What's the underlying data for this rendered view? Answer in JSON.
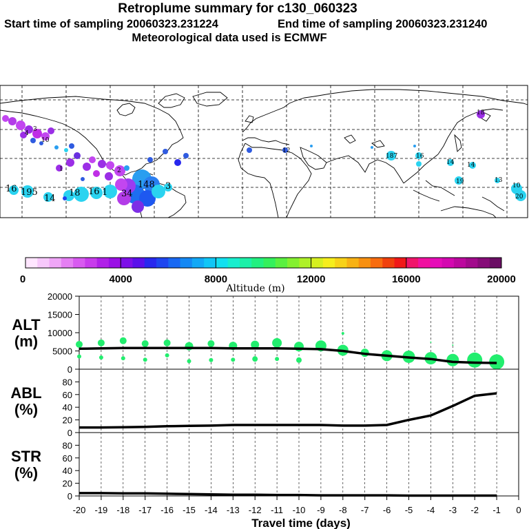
{
  "header": {
    "title": "Retroplume summary for c130_060323",
    "start": "Start time of sampling 20060323.231224",
    "end": "End time of sampling 20060323.231240",
    "met": "Meteorological data used is ECMWF"
  },
  "map_markers": [
    {
      "label": "16",
      "color": "#2ad3f0"
    },
    {
      "label": "195",
      "color": "#2ad3f0"
    },
    {
      "label": "14",
      "color": "#2ad3f0"
    },
    {
      "label": "18",
      "color": "#2ad3f0"
    },
    {
      "label": "16",
      "color": "#2ad3f0"
    },
    {
      "label": "1",
      "color": "#2ad3f0"
    },
    {
      "label": "148",
      "color": "#2ad3f0"
    },
    {
      "label": "3",
      "color": "#2ad3f0"
    },
    {
      "label": "34",
      "color": "#9b3cf0"
    },
    {
      "label": "10",
      "color": "#bf2ee6"
    },
    {
      "label": "4",
      "color": "#9b2ee6"
    },
    {
      "label": "3",
      "color": "#7d2ee6"
    },
    {
      "label": "2",
      "color": "#c246f0"
    },
    {
      "label": "1",
      "color": "#6a30e0"
    },
    {
      "label": "12",
      "color": "#2f5be0"
    },
    {
      "label": "187",
      "color": "#2ad3f0"
    },
    {
      "label": "16",
      "color": "#2ad3f0"
    },
    {
      "label": "14",
      "color": "#2ad3f0"
    },
    {
      "label": "14",
      "color": "#2ad3f0"
    },
    {
      "label": "19",
      "color": "#2ad3f0"
    },
    {
      "label": "13",
      "color": "#2ad3f0"
    },
    {
      "label": "10",
      "color": "#2ad3f0"
    },
    {
      "label": "20",
      "color": "#2ad3f0"
    },
    {
      "label": "18",
      "color": "#9b2ee6"
    }
  ],
  "colorbar": {
    "ticks": [
      "0",
      "4000",
      "8000",
      "12000",
      "16000",
      "20000"
    ],
    "label": "Altitude (m)",
    "colors": [
      "#ffe6ff",
      "#f7c8fb",
      "#efa6f7",
      "#e57ff3",
      "#d85af0",
      "#c83cec",
      "#b020e8",
      "#9a10e6",
      "#7d10e8",
      "#5a10ea",
      "#2828ee",
      "#1e46f0",
      "#1868f2",
      "#1488f4",
      "#12a8f6",
      "#10c6f6",
      "#12e0f0",
      "#18eece",
      "#1cf0a8",
      "#22f080",
      "#34f05c",
      "#5af040",
      "#84f030",
      "#aef028",
      "#d6f020",
      "#f6ee1c",
      "#f8d218",
      "#f8b214",
      "#f89010",
      "#f86c0e",
      "#f0400c",
      "#f01818",
      "#f0146a",
      "#f010a0",
      "#e60cb8",
      "#d408b0",
      "#bc089e",
      "#a20a8c",
      "#860c78",
      "#6a0e64"
    ]
  },
  "chart_data": [
    {
      "type": "line",
      "panel": "ALT",
      "label_line1": "ALT",
      "label_line2": "(m)",
      "ylim": [
        0,
        20000
      ],
      "yticks": [
        0,
        5000,
        10000,
        15000,
        20000
      ],
      "x": [
        -20,
        -19,
        -18,
        -17,
        -16,
        -15,
        -14,
        -13,
        -12,
        -11,
        -10,
        -9,
        -8,
        -7,
        -6,
        -5,
        -4,
        -3,
        -2,
        -1
      ],
      "values": [
        5600,
        5700,
        5800,
        5800,
        5800,
        5800,
        5800,
        5700,
        5700,
        5700,
        5600,
        5500,
        5000,
        4200,
        3700,
        3200,
        2800,
        2000,
        1800,
        1700
      ],
      "scatter": [
        {
          "x": -20,
          "y": 6800,
          "r": 5
        },
        {
          "x": -20,
          "y": 3500,
          "r": 3
        },
        {
          "x": -19,
          "y": 7200,
          "r": 5
        },
        {
          "x": -19,
          "y": 3200,
          "r": 3
        },
        {
          "x": -18,
          "y": 7800,
          "r": 5
        },
        {
          "x": -18,
          "y": 3000,
          "r": 3
        },
        {
          "x": -17,
          "y": 7000,
          "r": 5
        },
        {
          "x": -17,
          "y": 2600,
          "r": 3
        },
        {
          "x": -16,
          "y": 7200,
          "r": 5
        },
        {
          "x": -16,
          "y": 3800,
          "r": 3
        },
        {
          "x": -15,
          "y": 6300,
          "r": 6
        },
        {
          "x": -15,
          "y": 2200,
          "r": 3
        },
        {
          "x": -14,
          "y": 7000,
          "r": 5
        },
        {
          "x": -14,
          "y": 2500,
          "r": 3
        },
        {
          "x": -13,
          "y": 6400,
          "r": 6
        },
        {
          "x": -13,
          "y": 2600,
          "r": 3
        },
        {
          "x": -12,
          "y": 6700,
          "r": 6
        },
        {
          "x": -12,
          "y": 2800,
          "r": 4
        },
        {
          "x": -11,
          "y": 7200,
          "r": 7
        },
        {
          "x": -11,
          "y": 2800,
          "r": 3
        },
        {
          "x": -10,
          "y": 6200,
          "r": 7
        },
        {
          "x": -10,
          "y": 2500,
          "r": 4
        },
        {
          "x": -9,
          "y": 6400,
          "r": 8
        },
        {
          "x": -8,
          "y": 5200,
          "r": 8
        },
        {
          "x": -8,
          "y": 9800,
          "r": 2
        },
        {
          "x": -7,
          "y": 4500,
          "r": 6
        },
        {
          "x": -6,
          "y": 3700,
          "r": 8
        },
        {
          "x": -5,
          "y": 3400,
          "r": 9
        },
        {
          "x": -4,
          "y": 3000,
          "r": 9
        },
        {
          "x": -4,
          "y": 7400,
          "r": 1
        },
        {
          "x": -3,
          "y": 2500,
          "r": 9
        },
        {
          "x": -3,
          "y": 6600,
          "r": 1
        },
        {
          "x": -2,
          "y": 2500,
          "r": 11
        },
        {
          "x": -1,
          "y": 2000,
          "r": 11
        }
      ]
    },
    {
      "type": "line",
      "panel": "ABL",
      "label_line1": "ABL",
      "label_line2": "(%)",
      "ylim": [
        0,
        100
      ],
      "yticks": [
        0,
        20,
        40,
        60,
        80
      ],
      "x": [
        -20,
        -19,
        -18,
        -17,
        -16,
        -15,
        -14,
        -13,
        -12,
        -11,
        -10,
        -9,
        -8,
        -7,
        -6,
        -5,
        -4,
        -3,
        -2,
        -1
      ],
      "values": [
        8,
        8,
        8.5,
        9,
        10,
        10.5,
        11,
        12,
        12,
        12,
        12,
        12,
        11,
        11,
        12,
        20,
        27,
        42,
        58,
        62
      ]
    },
    {
      "type": "line",
      "panel": "STR",
      "label_line1": "STR",
      "label_line2": "(%)",
      "ylim": [
        0,
        100
      ],
      "yticks": [
        0,
        20,
        40,
        60,
        80
      ],
      "x": [
        -20,
        -19,
        -18,
        -17,
        -16,
        -15,
        -14,
        -13,
        -12,
        -11,
        -10,
        -9,
        -8,
        -7,
        -6,
        -5,
        -4,
        -3,
        -2,
        -1
      ],
      "values": [
        4.5,
        4.5,
        4,
        4,
        3.5,
        3,
        2.5,
        2,
        2,
        1.5,
        1.5,
        1,
        1,
        1,
        1,
        0.5,
        0.5,
        0.5,
        0.5,
        0.5
      ]
    }
  ],
  "xaxis": {
    "ticks": [
      "-20",
      "-19",
      "-18",
      "-17",
      "-16",
      "-15",
      "-14",
      "-13",
      "-12",
      "-11",
      "-10",
      "-9",
      "-8",
      "-7",
      "-6",
      "-5",
      "-4",
      "-3",
      "-2",
      "-1",
      "0"
    ],
    "label": "Travel time (days)"
  },
  "colors": {
    "scatter": "#22ee6e",
    "line": "#000000"
  }
}
